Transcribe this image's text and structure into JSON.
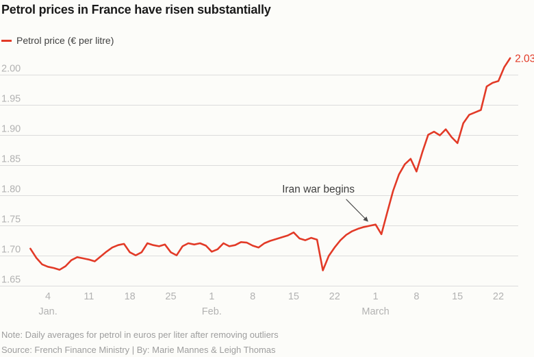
{
  "title": "Petrol prices in France have risen substantially",
  "legend": {
    "label": "Petrol price (€ per litre)"
  },
  "annotation": {
    "text": "Iran war begins"
  },
  "end_label": "2.03",
  "footer": {
    "note": "Note: Daily averages for petrol in euros per liter after removing outliers",
    "source": "Source: French Finance Ministry | By: Marie Mannes & Leigh Thomas"
  },
  "colors": {
    "accent": "#e23a27",
    "grid": "#dcdcdc",
    "tick_label": "#b2b2b2",
    "title": "#1a1a1a",
    "text": "#3f3f3f",
    "muted": "#9d9d9d",
    "arrow": "#4d4d4d",
    "background": "#fcfcf9"
  },
  "chart_data": {
    "type": "line",
    "title": "Petrol prices in France have risen substantially",
    "series_name": "Petrol price (€ per litre)",
    "ylabel": "€ per litre",
    "xlabel": "",
    "grid": "horizontal",
    "legend_position": "top-left",
    "ylim": [
      1.64,
      2.04
    ],
    "yticks": [
      1.65,
      1.7,
      1.75,
      1.8,
      1.85,
      1.9,
      1.95,
      2.0
    ],
    "x": [
      "Jan 1",
      "Jan 2",
      "Jan 3",
      "Jan 4",
      "Jan 5",
      "Jan 6",
      "Jan 7",
      "Jan 8",
      "Jan 9",
      "Jan 10",
      "Jan 11",
      "Jan 12",
      "Jan 13",
      "Jan 14",
      "Jan 15",
      "Jan 16",
      "Jan 17",
      "Jan 18",
      "Jan 19",
      "Jan 20",
      "Jan 21",
      "Jan 22",
      "Jan 23",
      "Jan 24",
      "Jan 25",
      "Jan 26",
      "Jan 27",
      "Jan 28",
      "Jan 29",
      "Jan 30",
      "Jan 31",
      "Feb 1",
      "Feb 2",
      "Feb 3",
      "Feb 4",
      "Feb 5",
      "Feb 6",
      "Feb 7",
      "Feb 8",
      "Feb 9",
      "Feb 10",
      "Feb 11",
      "Feb 12",
      "Feb 13",
      "Feb 14",
      "Feb 15",
      "Feb 16",
      "Feb 17",
      "Feb 18",
      "Feb 19",
      "Feb 20",
      "Feb 21",
      "Feb 22",
      "Feb 23",
      "Feb 24",
      "Feb 25",
      "Feb 26",
      "Feb 27",
      "Feb 28",
      "March 1",
      "March 2",
      "March 3",
      "March 4",
      "March 5",
      "March 6",
      "March 7",
      "March 8",
      "March 9",
      "March 10",
      "March 11",
      "March 12",
      "March 13",
      "March 14",
      "March 15",
      "March 16",
      "March 17",
      "March 18",
      "March 19",
      "March 20",
      "March 21",
      "March 22",
      "March 23",
      "March 24"
    ],
    "values": [
      1.712,
      1.697,
      1.686,
      1.682,
      1.68,
      1.677,
      1.683,
      1.693,
      1.698,
      1.696,
      1.694,
      1.691,
      1.699,
      1.707,
      1.714,
      1.718,
      1.72,
      1.706,
      1.701,
      1.706,
      1.721,
      1.718,
      1.716,
      1.719,
      1.706,
      1.701,
      1.716,
      1.721,
      1.719,
      1.721,
      1.717,
      1.707,
      1.711,
      1.721,
      1.716,
      1.718,
      1.723,
      1.722,
      1.717,
      1.714,
      1.721,
      1.725,
      1.728,
      1.731,
      1.734,
      1.739,
      1.729,
      1.726,
      1.73,
      1.727,
      1.676,
      1.7,
      1.714,
      1.726,
      1.735,
      1.741,
      1.745,
      1.748,
      1.75,
      1.752,
      1.736,
      1.772,
      1.808,
      1.835,
      1.852,
      1.861,
      1.84,
      1.872,
      1.901,
      1.906,
      1.9,
      1.91,
      1.897,
      1.887,
      1.92,
      1.934,
      1.938,
      1.942,
      1.981,
      1.987,
      1.99,
      2.013,
      2.028
    ],
    "xticks": [
      {
        "index": 3,
        "label": "4",
        "month": "Jan."
      },
      {
        "index": 10,
        "label": "11"
      },
      {
        "index": 17,
        "label": "18"
      },
      {
        "index": 24,
        "label": "25"
      },
      {
        "index": 31,
        "label": "1",
        "month": "Feb."
      },
      {
        "index": 38,
        "label": "8"
      },
      {
        "index": 45,
        "label": "15"
      },
      {
        "index": 52,
        "label": "22"
      },
      {
        "index": 59,
        "label": "1",
        "month": "March"
      },
      {
        "index": 66,
        "label": "8"
      },
      {
        "index": 73,
        "label": "15"
      },
      {
        "index": 80,
        "label": "22"
      }
    ],
    "annotation": {
      "text": "Iran war begins",
      "target_x": "March 1",
      "target_index": 59,
      "target_value": 1.752
    },
    "end_label": {
      "text": "2.03",
      "value": 2.03
    }
  }
}
